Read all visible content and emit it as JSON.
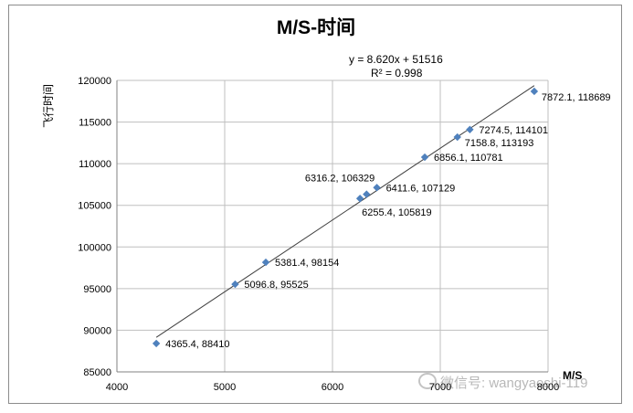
{
  "chart_data": {
    "type": "scatter",
    "title": "M/S-时间",
    "xlabel": "M/S",
    "ylabel": "飞行时间",
    "xlim": [
      4000,
      8000
    ],
    "ylim": [
      85000,
      120000
    ],
    "x_ticks": [
      "4000",
      "5000",
      "6000",
      "7000",
      "8000"
    ],
    "y_ticks": [
      "85000",
      "90000",
      "95000",
      "100000",
      "105000",
      "110000",
      "115000",
      "120000"
    ],
    "grid": true,
    "marker_color": "#4f81bd",
    "trendline": {
      "slope": 8.62,
      "intercept": 51516,
      "equation": "y = 8.620x + 51516",
      "r_squared": "R² = 0.998",
      "x_range": [
        4365.4,
        7872.1
      ]
    },
    "points": [
      {
        "x": 4365.4,
        "y": 88410,
        "label": "4365.4, 88410",
        "pos": "right"
      },
      {
        "x": 5096.8,
        "y": 95525,
        "label": "5096.8, 95525",
        "pos": "right"
      },
      {
        "x": 5381.4,
        "y": 98154,
        "label": "5381.4, 98154",
        "pos": "right"
      },
      {
        "x": 6255.4,
        "y": 105819,
        "label": "6255.4, 105819",
        "pos": "below"
      },
      {
        "x": 6316.2,
        "y": 106329,
        "label": "6316.2, 106329",
        "pos": "above-left"
      },
      {
        "x": 6411.6,
        "y": 107129,
        "label": "6411.6, 107129",
        "pos": "right"
      },
      {
        "x": 6856.1,
        "y": 110781,
        "label": "6856.1, 110781",
        "pos": "right"
      },
      {
        "x": 7158.8,
        "y": 113193,
        "label": "7158.8, 113193",
        "pos": "right-below"
      },
      {
        "x": 7274.5,
        "y": 114101,
        "label": "7274.5, 114101",
        "pos": "right"
      },
      {
        "x": 7872.1,
        "y": 118689,
        "label": "7872.1, 118689",
        "pos": "right-below"
      }
    ]
  },
  "watermark": "微信号: wangyaoshi-119"
}
